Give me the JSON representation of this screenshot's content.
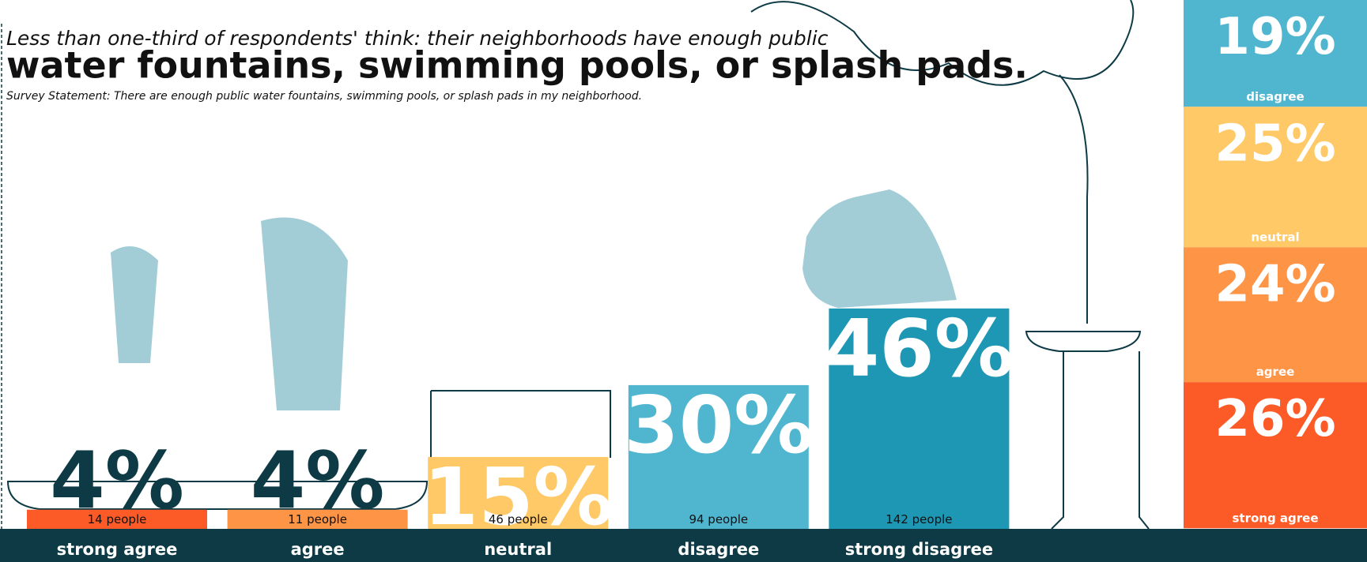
{
  "chart_data": [
    {
      "type": "bar",
      "supertitle": "Less than one-third of respondents' think: their neighborhoods have enough public",
      "title": "water fountains, swimming pools, or splash pads.",
      "subtitle": "Survey Statement: There are enough public water fountains, swimming pools, or splash pads in my neighborhood.",
      "categories": [
        "strong agree",
        "agree",
        "neutral",
        "disagree",
        "strong disagree"
      ],
      "values": [
        4,
        4,
        15,
        30,
        46
      ],
      "value_labels": [
        "4%",
        "4%",
        "15%",
        "30%",
        "46%"
      ],
      "people_labels": [
        "14 people",
        "11 people",
        "46 people",
        "94 people",
        "142 people"
      ],
      "colors": [
        "#fc5a26",
        "#fd9446",
        "#fec966",
        "#50b6d0",
        "#1e97b5"
      ],
      "ylim": [
        0,
        100
      ]
    },
    {
      "type": "stack",
      "categories": [
        "disagree",
        "neutral",
        "agree",
        "strong agree"
      ],
      "values": [
        19,
        25,
        24,
        26
      ],
      "value_labels": [
        "19%",
        "25%",
        "24%",
        "26%"
      ],
      "colors": [
        "#50b6d0",
        "#fec966",
        "#fd9446",
        "#fc5a26"
      ],
      "ylim": [
        0,
        100
      ]
    }
  ]
}
